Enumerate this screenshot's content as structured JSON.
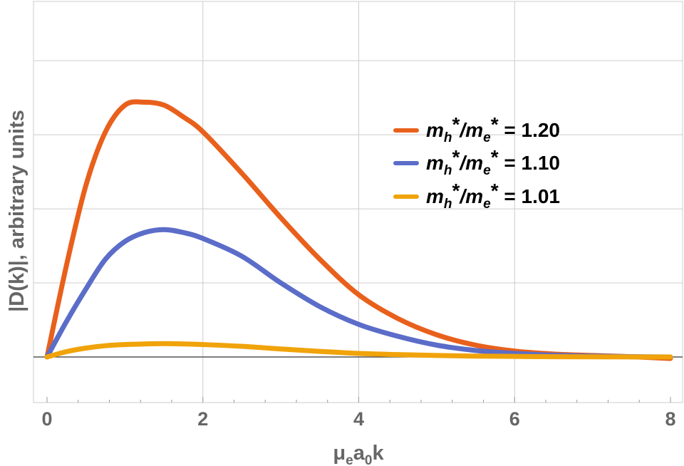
{
  "chart_data": {
    "type": "line",
    "title": "",
    "xlabel": {
      "mu": "μ",
      "e": "e",
      "a": "a",
      "zero": "0",
      "k": "k"
    },
    "ylabel": "|D(k)|, arbitrary units",
    "xlim": [
      -0.2,
      8.1
    ],
    "ylim": [
      -0.15,
      1.2
    ],
    "x_ticks": [
      0,
      2,
      4,
      6,
      8
    ],
    "y_gridlines": [
      0.25,
      0.5,
      0.75,
      1.0
    ],
    "grid": true,
    "legend_position": "right",
    "series": [
      {
        "name": "mh*/me* = 1.20",
        "legend": {
          "m": "m",
          "h": "h",
          "star1": "*",
          "slash": "/",
          "m2": "m",
          "e": "e",
          "star2": "*",
          "value": " = 1.20"
        },
        "color": "#e8601c",
        "x": [
          0,
          0.25,
          0.5,
          0.75,
          1.0,
          1.25,
          1.5,
          1.75,
          2.0,
          2.5,
          3.0,
          3.5,
          4.0,
          4.5,
          5.0,
          5.5,
          6.0,
          6.5,
          7.0,
          7.5,
          8.0
        ],
        "values": [
          0,
          0.31,
          0.58,
          0.76,
          0.85,
          0.86,
          0.85,
          0.81,
          0.76,
          0.62,
          0.47,
          0.33,
          0.21,
          0.13,
          0.075,
          0.04,
          0.02,
          0.01,
          0.005,
          0.001,
          -0.005
        ]
      },
      {
        "name": "mh*/me* = 1.10",
        "legend": {
          "m": "m",
          "h": "h",
          "star1": "*",
          "slash": "/",
          "m2": "m",
          "e": "e",
          "star2": "*",
          "value": " = 1.10"
        },
        "color": "#5b6dc8",
        "x": [
          0,
          0.25,
          0.5,
          0.75,
          1.0,
          1.25,
          1.5,
          1.75,
          2.0,
          2.5,
          3.0,
          3.5,
          4.0,
          4.5,
          5.0,
          5.5,
          6.0,
          6.5,
          7.0,
          7.5,
          8.0
        ],
        "values": [
          0,
          0.12,
          0.23,
          0.33,
          0.39,
          0.42,
          0.43,
          0.42,
          0.4,
          0.34,
          0.25,
          0.17,
          0.11,
          0.07,
          0.04,
          0.022,
          0.012,
          0.006,
          0.003,
          0.001,
          0.0
        ]
      },
      {
        "name": "mh*/me* = 1.01",
        "legend": {
          "m": "m",
          "h": "h",
          "star1": "*",
          "slash": "/",
          "m2": "m",
          "e": "e",
          "star2": "*",
          "value": " = 1.01"
        },
        "color": "#f0a30a",
        "x": [
          0,
          0.25,
          0.5,
          0.75,
          1.0,
          1.25,
          1.5,
          1.75,
          2.0,
          2.5,
          3.0,
          3.5,
          4.0,
          4.5,
          5.0,
          5.5,
          6.0,
          6.5,
          7.0,
          7.5,
          8.0
        ],
        "values": [
          0,
          0.018,
          0.03,
          0.038,
          0.042,
          0.044,
          0.045,
          0.044,
          0.042,
          0.036,
          0.027,
          0.019,
          0.012,
          0.008,
          0.005,
          0.003,
          0.002,
          0.001,
          0.0005,
          0.0002,
          0.0
        ]
      }
    ]
  }
}
